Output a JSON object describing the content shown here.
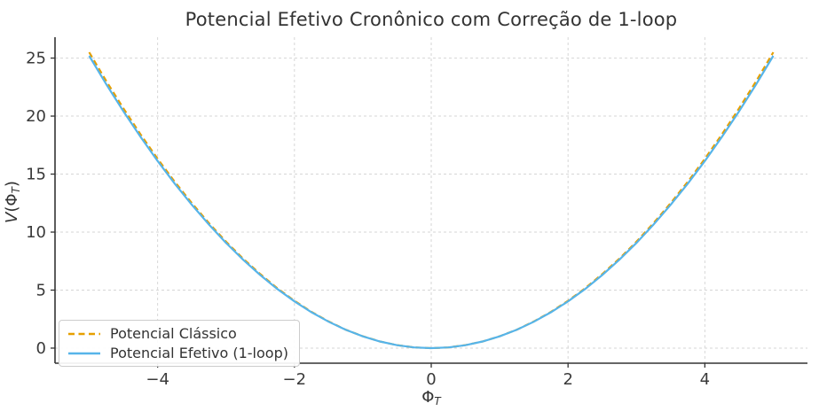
{
  "chart_data": {
    "type": "line",
    "title": "Potencial Efetivo Cronônico com Correção de 1-loop",
    "xlabel": {
      "base": "Φ",
      "sub": "T"
    },
    "ylabel": {
      "prefix": "V",
      "open": "(Φ",
      "sub": "T",
      "close": ")"
    },
    "xlim": [
      -5.5,
      5.5
    ],
    "ylim": [
      -1.3,
      26.8
    ],
    "grid": {
      "visible": true,
      "line_style": "dashed",
      "color": "#d6d6d6"
    },
    "axis": {
      "spine_color": "#333333",
      "tick_color": "#333333",
      "tick_label_color": "#3a3a3a"
    },
    "legend_position": "lower-left",
    "x_ticks": [
      {
        "v": -4,
        "label": "−4"
      },
      {
        "v": -2,
        "label": "−2"
      },
      {
        "v": 0,
        "label": "0"
      },
      {
        "v": 2,
        "label": "2"
      },
      {
        "v": 4,
        "label": "4"
      }
    ],
    "y_ticks": [
      {
        "v": 0,
        "label": "0"
      },
      {
        "v": 5,
        "label": "5"
      },
      {
        "v": 10,
        "label": "10"
      },
      {
        "v": 15,
        "label": "15"
      },
      {
        "v": 20,
        "label": "20"
      },
      {
        "v": 25,
        "label": "25"
      }
    ],
    "x": [
      -5,
      -4.75,
      -4.5,
      -4.25,
      -4,
      -3.75,
      -3.5,
      -3.25,
      -3,
      -2.75,
      -2.5,
      -2.25,
      -2,
      -1.75,
      -1.5,
      -1.25,
      -1,
      -0.75,
      -0.5,
      -0.25,
      0,
      0.25,
      0.5,
      0.75,
      1,
      1.25,
      1.5,
      1.75,
      2,
      2.25,
      2.5,
      2.75,
      3,
      3.25,
      3.5,
      3.75,
      4,
      4.25,
      4.5,
      4.75,
      5
    ],
    "series": [
      {
        "name": "Potencial Clássico",
        "color": "#E69F00",
        "line_style": "dashed",
        "values": [
          25.5,
          23.01,
          20.66,
          18.42,
          16.32,
          14.34,
          12.5,
          10.77,
          9.18,
          7.71,
          6.38,
          5.16,
          4.08,
          3.12,
          2.3,
          1.59,
          1.02,
          0.57,
          0.26,
          0.06,
          0,
          0.06,
          0.26,
          0.57,
          1.02,
          1.59,
          2.3,
          3.12,
          4.08,
          5.16,
          6.38,
          7.71,
          9.18,
          10.77,
          12.5,
          14.34,
          16.32,
          18.42,
          20.66,
          23.01,
          25.5
        ]
      },
      {
        "name": "Potencial Efetivo (1-loop)",
        "color": "#56B4E9",
        "line_style": "solid",
        "values": [
          25.2,
          22.74,
          20.41,
          18.21,
          16.13,
          14.18,
          12.35,
          10.65,
          9.07,
          7.62,
          6.3,
          5.1,
          4.03,
          3.09,
          2.27,
          1.58,
          1.01,
          0.57,
          0.25,
          0.06,
          0,
          0.06,
          0.25,
          0.57,
          1.01,
          1.58,
          2.27,
          3.09,
          4.03,
          5.1,
          6.3,
          7.62,
          9.07,
          10.65,
          12.35,
          14.18,
          16.13,
          18.21,
          20.41,
          22.74,
          25.2
        ]
      }
    ]
  }
}
